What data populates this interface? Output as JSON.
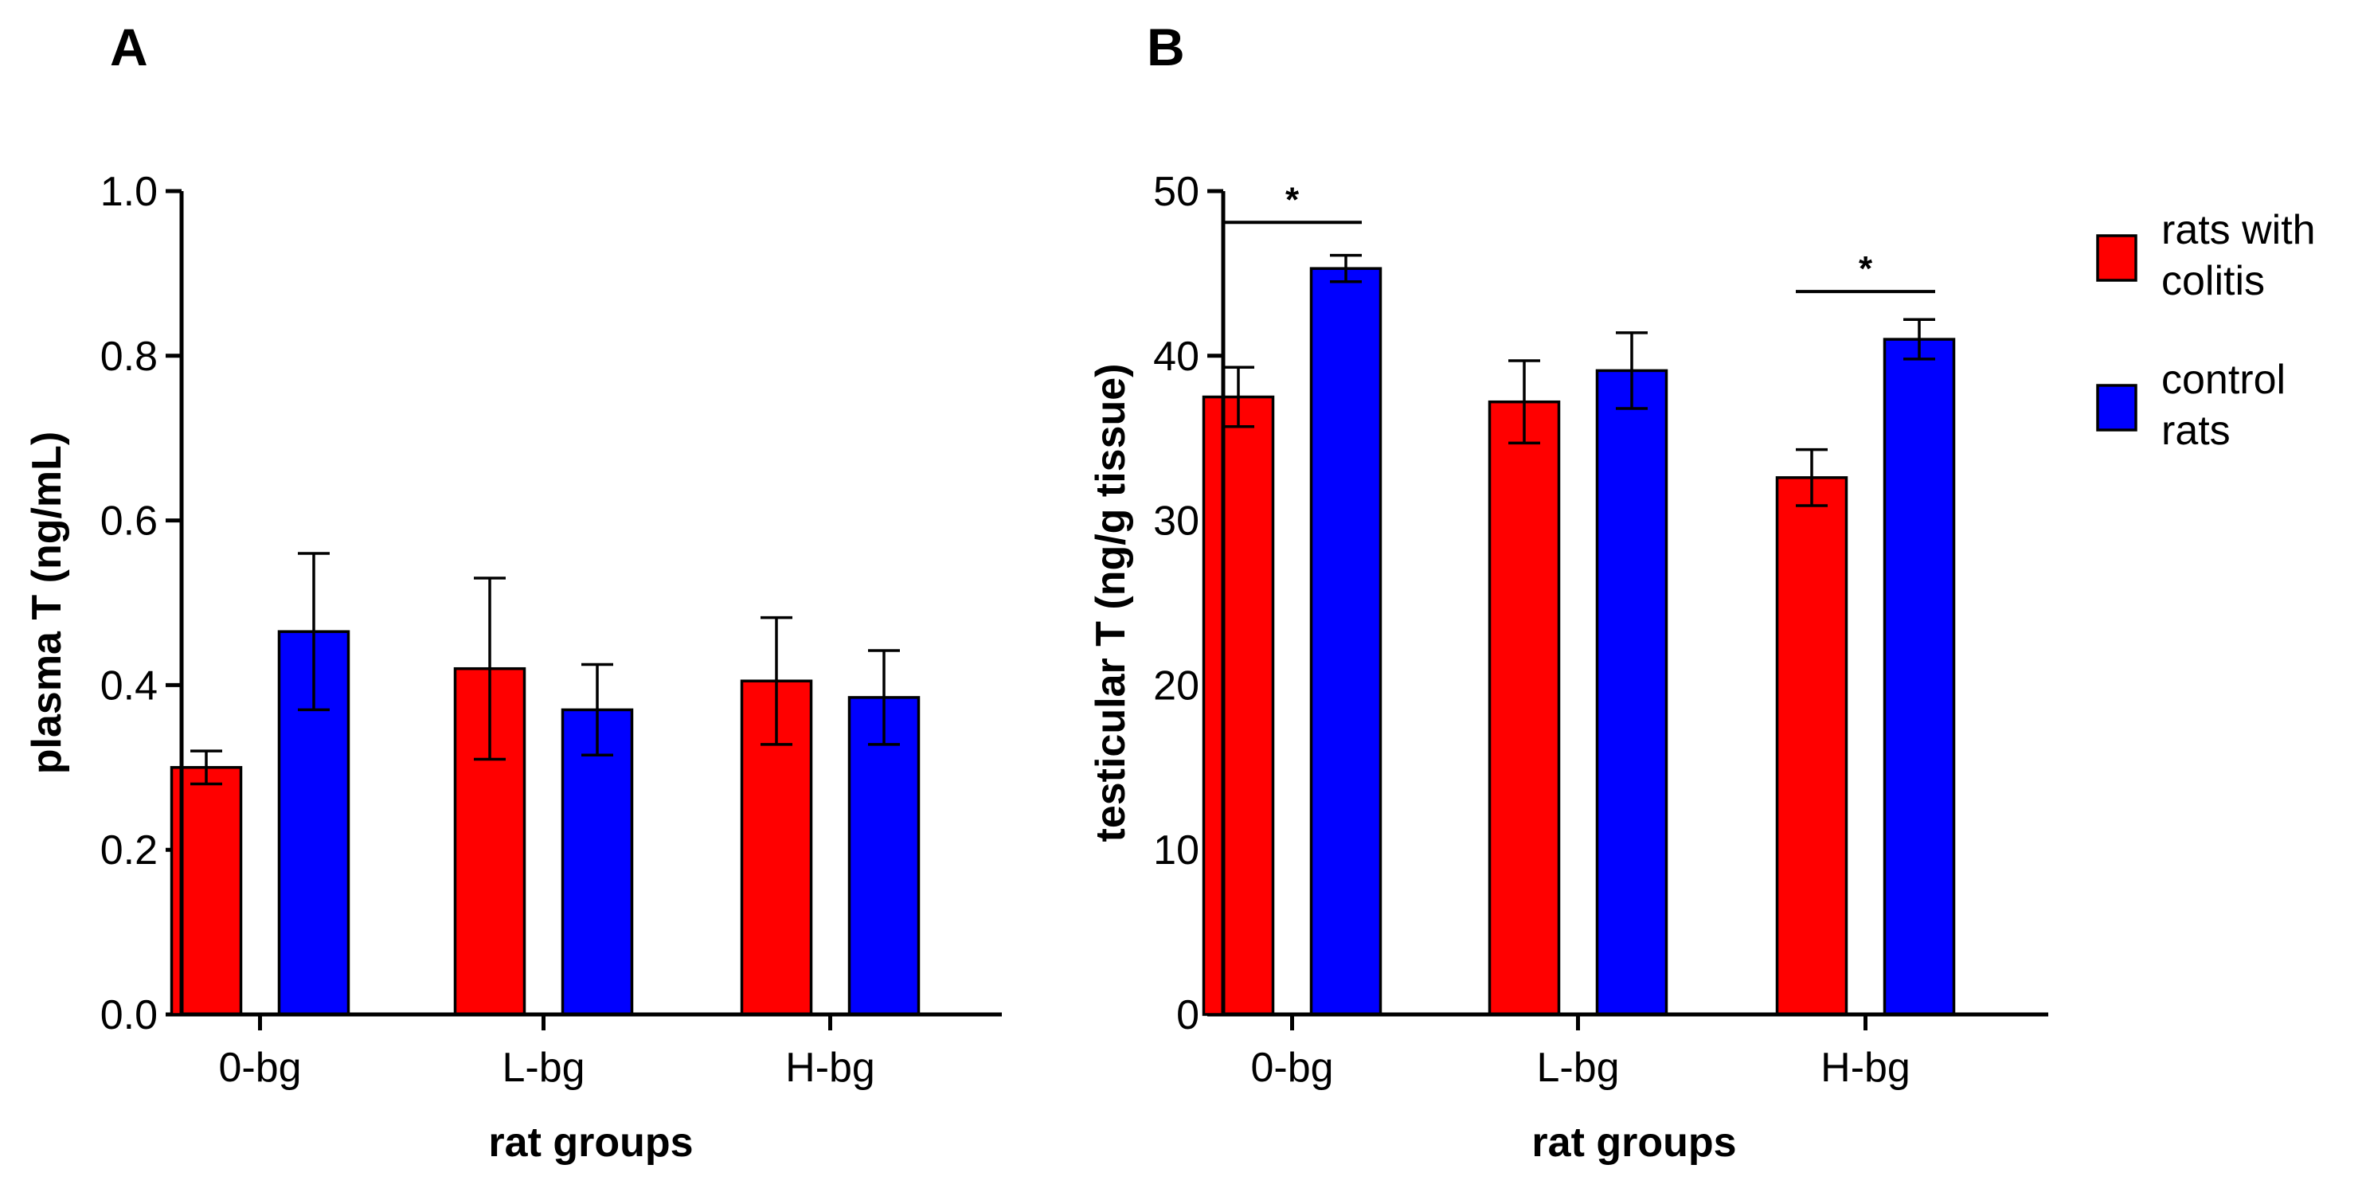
{
  "colors": {
    "rats_with_colitis": "#ff0000",
    "control_rats": "#0000ff"
  },
  "legend": [
    {
      "series": "rats_with_colitis",
      "lines": [
        "rats with",
        "colitis"
      ]
    },
    {
      "series": "control_rats",
      "lines": [
        "control",
        "rats"
      ]
    }
  ],
  "chart_data": [
    {
      "panel": "A",
      "type": "bar",
      "title": "",
      "xlabel": "rat groups",
      "ylabel": "plasma T (ng/mL)",
      "ylim": [
        0,
        1.0
      ],
      "yticks": [
        "0.0",
        "0.2",
        "0.4",
        "0.6",
        "0.8",
        "1.0"
      ],
      "categories": [
        "0-bg",
        "L-bg",
        "H-bg"
      ],
      "series": [
        {
          "name": "rats with colitis",
          "key": "rats_with_colitis",
          "values": [
            0.3,
            0.42,
            0.405
          ],
          "errors": [
            0.02,
            0.11,
            0.077
          ]
        },
        {
          "name": "control rats",
          "key": "control_rats",
          "values": [
            0.465,
            0.37,
            0.385
          ],
          "errors": [
            0.095,
            0.055,
            0.057
          ]
        }
      ],
      "significance": []
    },
    {
      "panel": "B",
      "type": "bar",
      "title": "",
      "xlabel": "rat groups",
      "ylabel": "testicular T (ng/g tissue)",
      "ylim": [
        0,
        50
      ],
      "yticks": [
        "0",
        "10",
        "20",
        "30",
        "40",
        "50"
      ],
      "categories": [
        "0-bg",
        "L-bg",
        "H-bg"
      ],
      "series": [
        {
          "name": "rats with colitis",
          "key": "rats_with_colitis",
          "values": [
            37.5,
            37.2,
            32.6
          ],
          "errors": [
            1.8,
            2.5,
            1.7
          ]
        },
        {
          "name": "control rats",
          "key": "control_rats",
          "values": [
            45.3,
            39.1,
            41.0
          ],
          "errors": [
            0.8,
            2.3,
            1.2
          ]
        }
      ],
      "significance": [
        {
          "category": "0-bg",
          "label": "*",
          "y": 48.1
        },
        {
          "category": "H-bg",
          "label": "*",
          "y": 43.9
        }
      ]
    }
  ]
}
